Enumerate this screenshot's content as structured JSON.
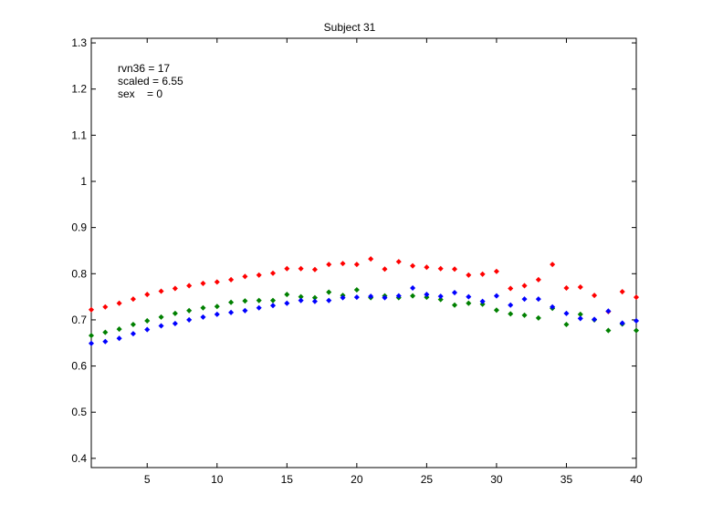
{
  "chart_data": {
    "type": "scatter",
    "title": "Subject 31",
    "xlabel": "",
    "ylabel": "",
    "xlim": [
      1,
      40
    ],
    "ylim": [
      0.38,
      1.31
    ],
    "xticks": [
      5,
      10,
      15,
      20,
      25,
      30,
      35,
      40
    ],
    "yticks": [
      0.4,
      0.5,
      0.6,
      0.7,
      0.8,
      0.9,
      1.0,
      1.1,
      1.2,
      1.3
    ],
    "ytick_labels": [
      "0.4",
      "0.5",
      "0.6",
      "0.7",
      "0.8",
      "0.9",
      "1",
      "1.1",
      "1.2",
      "1.3"
    ],
    "grid": false,
    "annotations": [
      "rvn36 = 17",
      "scaled = 6.55",
      "sex    = 0"
    ],
    "series": [
      {
        "color": "#ff0000",
        "x": [
          1,
          2,
          3,
          4,
          5,
          6,
          7,
          8,
          9,
          10,
          11,
          12,
          13,
          14,
          15,
          16,
          17,
          18,
          19,
          20,
          21,
          22,
          23,
          24,
          25,
          26,
          27,
          28,
          29,
          30,
          31,
          32,
          33,
          34,
          35,
          36,
          37,
          38,
          39,
          40
        ],
        "y": [
          0.722,
          0.728,
          0.736,
          0.745,
          0.755,
          0.762,
          0.768,
          0.774,
          0.779,
          0.782,
          0.787,
          0.794,
          0.797,
          0.801,
          0.811,
          0.811,
          0.809,
          0.82,
          0.822,
          0.82,
          0.832,
          0.81,
          0.826,
          0.817,
          0.814,
          0.811,
          0.81,
          0.797,
          0.799,
          0.805,
          0.768,
          0.774,
          0.787,
          0.82,
          0.769,
          0.771,
          0.753,
          0.718,
          0.761,
          0.749
        ]
      },
      {
        "color": "#008000",
        "x": [
          1,
          2,
          3,
          4,
          5,
          6,
          7,
          8,
          9,
          10,
          11,
          12,
          13,
          14,
          15,
          16,
          17,
          18,
          19,
          20,
          21,
          22,
          23,
          24,
          25,
          26,
          27,
          28,
          29,
          30,
          31,
          32,
          33,
          34,
          35,
          36,
          37,
          38,
          39,
          40
        ],
        "y": [
          0.666,
          0.673,
          0.68,
          0.69,
          0.698,
          0.706,
          0.714,
          0.72,
          0.726,
          0.729,
          0.738,
          0.741,
          0.742,
          0.742,
          0.755,
          0.75,
          0.748,
          0.76,
          0.753,
          0.765,
          0.748,
          0.752,
          0.748,
          0.752,
          0.749,
          0.744,
          0.732,
          0.736,
          0.734,
          0.721,
          0.713,
          0.71,
          0.704,
          0.725,
          0.69,
          0.712,
          0.7,
          0.677,
          0.691,
          0.677
        ]
      },
      {
        "color": "#0000ff",
        "x": [
          1,
          2,
          3,
          4,
          5,
          6,
          7,
          8,
          9,
          10,
          11,
          12,
          13,
          14,
          15,
          16,
          17,
          18,
          19,
          20,
          21,
          22,
          23,
          24,
          25,
          26,
          27,
          28,
          29,
          30,
          31,
          32,
          33,
          34,
          35,
          36,
          37,
          38,
          39,
          40
        ],
        "y": [
          0.649,
          0.653,
          0.66,
          0.67,
          0.679,
          0.687,
          0.692,
          0.7,
          0.706,
          0.712,
          0.716,
          0.72,
          0.726,
          0.731,
          0.736,
          0.742,
          0.74,
          0.742,
          0.748,
          0.749,
          0.751,
          0.748,
          0.752,
          0.769,
          0.755,
          0.751,
          0.759,
          0.75,
          0.74,
          0.752,
          0.732,
          0.745,
          0.745,
          0.728,
          0.714,
          0.703,
          0.701,
          0.719,
          0.693,
          0.698
        ]
      }
    ]
  }
}
